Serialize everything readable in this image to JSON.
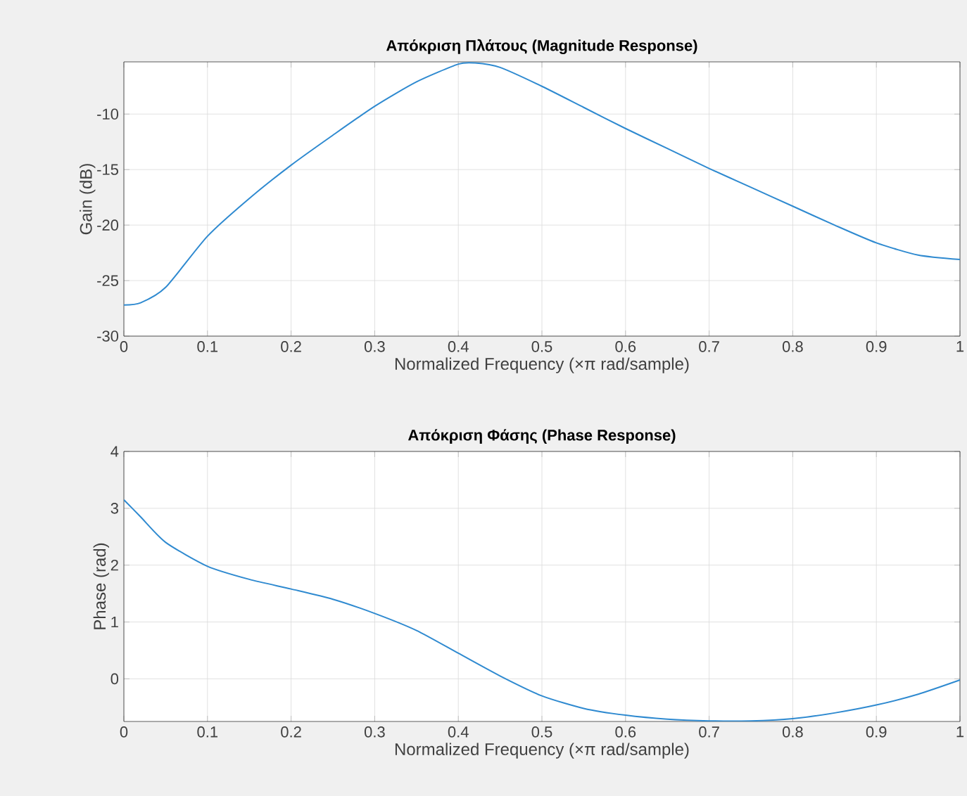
{
  "chart_data": [
    {
      "type": "line",
      "title": "Απόκριση Πλάτους (Magnitude Response)",
      "xlabel": "Normalized Frequency (×π rad/sample)",
      "ylabel": "Gain (dB)",
      "x": [
        0,
        0.02,
        0.05,
        0.1,
        0.15,
        0.2,
        0.25,
        0.3,
        0.35,
        0.4,
        0.42,
        0.45,
        0.5,
        0.55,
        0.6,
        0.65,
        0.7,
        0.75,
        0.8,
        0.85,
        0.9,
        0.95,
        1.0
      ],
      "series": [
        {
          "color": "#2f8ad0",
          "values": [
            -27.2,
            -27.0,
            -25.6,
            -21,
            -17.6,
            -14.6,
            -11.9,
            -9.3,
            -7.1,
            -5.5,
            -5.4,
            -5.8,
            -7.5,
            -9.4,
            -11.3,
            -13.1,
            -14.9,
            -16.6,
            -18.3,
            -20,
            -21.6,
            -22.7,
            -23.1
          ]
        }
      ],
      "xlim": [
        0,
        1
      ],
      "ylim": [
        -30,
        -5.3
      ],
      "xticks": [
        0,
        0.1,
        0.2,
        0.3,
        0.4,
        0.5,
        0.6,
        0.7,
        0.8,
        0.9,
        1
      ],
      "yticks": [
        -30,
        -25,
        -20,
        -15,
        -10
      ],
      "grid": true
    },
    {
      "type": "line",
      "title": "Απόκριση Φάσης (Phase Response)",
      "xlabel": "Normalized Frequency (×π rad/sample)",
      "ylabel": "Phase (rad)",
      "x": [
        0,
        0.02,
        0.05,
        0.1,
        0.15,
        0.2,
        0.25,
        0.3,
        0.35,
        0.4,
        0.45,
        0.5,
        0.55,
        0.6,
        0.65,
        0.7,
        0.75,
        0.8,
        0.85,
        0.9,
        0.95,
        1.0
      ],
      "series": [
        {
          "color": "#2f8ad0",
          "values": [
            3.15,
            2.85,
            2.4,
            1.98,
            1.75,
            1.58,
            1.4,
            1.15,
            0.85,
            0.45,
            0.05,
            -0.3,
            -0.52,
            -0.64,
            -0.71,
            -0.74,
            -0.74,
            -0.7,
            -0.6,
            -0.46,
            -0.27,
            -0.02
          ]
        }
      ],
      "xlim": [
        0,
        1
      ],
      "ylim": [
        -0.75,
        4
      ],
      "xticks": [
        0,
        0.1,
        0.2,
        0.3,
        0.4,
        0.5,
        0.6,
        0.7,
        0.8,
        0.9,
        1
      ],
      "yticks": [
        0,
        1,
        2,
        3,
        4
      ],
      "grid": true
    }
  ]
}
